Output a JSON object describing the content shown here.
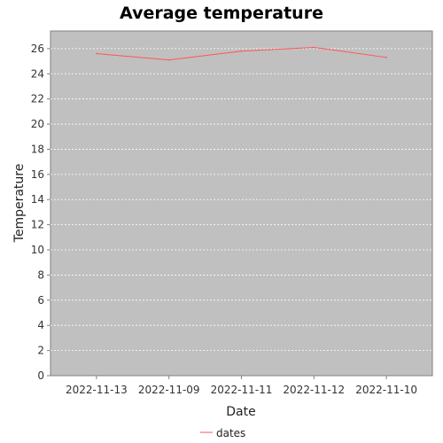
{
  "chart_data": {
    "type": "line",
    "title": "Average temperature",
    "xlabel": "Date",
    "ylabel": "Temperature",
    "categories": [
      "2022-11-13",
      "2022-11-09",
      "2022-11-11",
      "2022-11-12",
      "2022-11-10"
    ],
    "series": [
      {
        "name": "dates",
        "values": [
          25.6,
          25.1,
          25.8,
          26.1,
          25.3
        ],
        "color": "#ff5555"
      }
    ],
    "ylim": [
      0,
      27.4
    ],
    "yticks": [
      0,
      2,
      4,
      6,
      8,
      10,
      12,
      14,
      16,
      18,
      20,
      22,
      24,
      26
    ],
    "grid": true,
    "legend_position": "bottom-center",
    "plot_background": "#c0c0c0"
  }
}
